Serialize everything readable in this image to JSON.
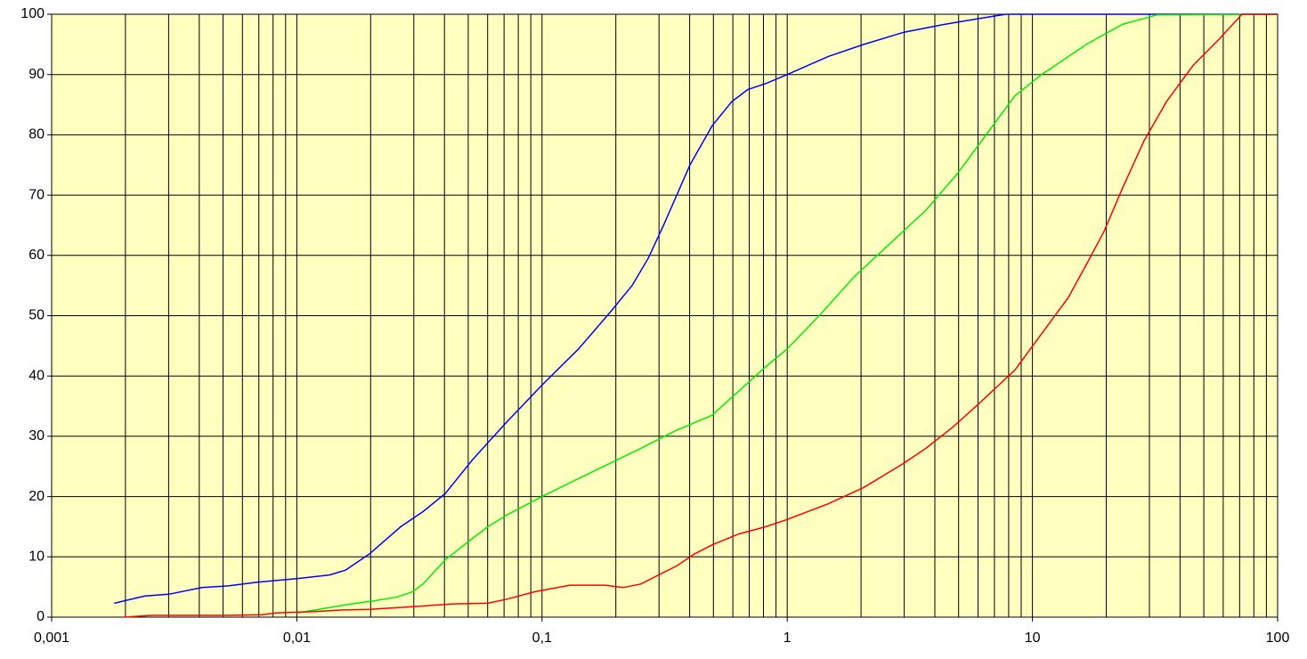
{
  "chart_data": {
    "type": "line",
    "log_x": true,
    "grid": true,
    "minor_grid": true,
    "plot_color": "#ffffc0",
    "xlim": [
      0.001,
      100
    ],
    "xticks": [
      {
        "value": 0.001,
        "label": "0,001"
      },
      {
        "value": 0.01,
        "label": "0,01"
      },
      {
        "value": 0.1,
        "label": "0,1"
      },
      1,
      10,
      100
    ],
    "ylim": [
      0,
      100
    ],
    "yticks": [
      0,
      10,
      20,
      30,
      40,
      50,
      60,
      70,
      80,
      90,
      100
    ],
    "series": [
      {
        "color": "#0000ff",
        "x": [
          0.0018,
          0.0024,
          0.003,
          0.0041,
          0.0053,
          0.0069,
          0.01,
          0.0136,
          0.0158,
          0.0198,
          0.0265,
          0.0327,
          0.0403,
          0.0518,
          0.0603,
          0.0723,
          0.1,
          0.141,
          0.189,
          0.233,
          0.271,
          0.313,
          0.401,
          0.494,
          0.594,
          0.69,
          0.816,
          1,
          1.47,
          2.05,
          2.98,
          4.35,
          6.08,
          7.8,
          100
        ],
        "values": [
          2.3,
          3.5,
          3.8,
          4.9,
          5.2,
          5.8,
          6.4,
          7.0,
          7.8,
          10.5,
          15,
          17.5,
          20.5,
          26,
          29,
          32.5,
          38.5,
          44.5,
          50.5,
          55,
          59.5,
          65,
          75,
          81.5,
          85.5,
          87.5,
          88.5,
          90,
          93,
          95,
          97,
          98.3,
          99.3,
          100,
          100
        ]
      },
      {
        "color": "#00ee00",
        "x": [
          0.01,
          0.0136,
          0.0167,
          0.0206,
          0.0254,
          0.0296,
          0.0327,
          0.0403,
          0.0518,
          0.0601,
          0.0723,
          0.1,
          0.141,
          0.189,
          0.253,
          0.354,
          0.494,
          0.635,
          0.816,
          1,
          1.35,
          1.88,
          2.63,
          3.68,
          4.93,
          6.61,
          8.49,
          10.9,
          16.6,
          23.2,
          32.3,
          100
        ],
        "values": [
          0.7,
          1.6,
          2.2,
          2.7,
          3.3,
          4.2,
          5.5,
          9.5,
          13,
          15,
          17,
          20,
          23,
          25.5,
          28,
          31,
          33.5,
          37.5,
          41.5,
          44.5,
          50,
          56.5,
          62,
          67.5,
          73.5,
          80.5,
          86.5,
          90,
          95,
          98.3,
          99.9,
          100
        ]
      },
      {
        "color": "#ff0000",
        "x": [
          0.00199,
          0.00255,
          0.00498,
          0.00726,
          0.00822,
          0.0115,
          0.0154,
          0.0198,
          0.0288,
          0.0438,
          0.0601,
          0.0723,
          0.0929,
          0.13,
          0.181,
          0.214,
          0.253,
          0.299,
          0.354,
          0.419,
          0.494,
          0.635,
          0.816,
          1,
          1.47,
          2.05,
          2.98,
          3.68,
          4.73,
          6.08,
          8.49,
          10.9,
          14.0,
          16.6,
          19.6,
          23.2,
          28.5,
          35.2,
          45.2,
          58.1,
          71.6,
          100
        ],
        "values": [
          0,
          0.3,
          0.3,
          0.4,
          0.7,
          0.9,
          1.2,
          1.3,
          1.7,
          2.2,
          2.3,
          3,
          4.2,
          5.3,
          5.3,
          4.9,
          5.5,
          7,
          8.5,
          10.5,
          12,
          13.8,
          15,
          16.2,
          18.8,
          21.5,
          25.5,
          28,
          31.5,
          35.5,
          41,
          47,
          53,
          58.5,
          64,
          71,
          79,
          85.5,
          91.5,
          96,
          100,
          100
        ]
      }
    ]
  }
}
